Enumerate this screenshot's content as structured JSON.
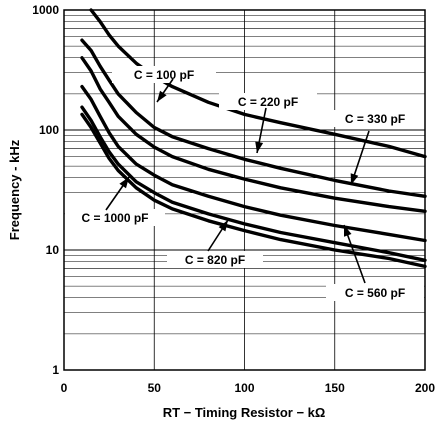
{
  "chart_data": {
    "type": "line",
    "title": "",
    "xlabel": "RT − Timing Resistor − kΩ",
    "ylabel": "Frequency - kHz",
    "xlim": [
      0,
      200
    ],
    "ylim": [
      1,
      1000
    ],
    "y_scale": "log",
    "grid": true,
    "x_ticks": [
      "0",
      "50",
      "100",
      "150",
      "200"
    ],
    "y_ticks": [
      "1",
      "10",
      "100",
      "1000"
    ],
    "series": [
      {
        "name": "C = 100 pF",
        "x": [
          15,
          20,
          25,
          30,
          40,
          50,
          60,
          80,
          100,
          120,
          150,
          180,
          200
        ],
        "y": [
          1000,
          800,
          620,
          500,
          360,
          280,
          230,
          170,
          135,
          115,
          92,
          73,
          60
        ]
      },
      {
        "name": "C = 220 pF",
        "x": [
          10,
          15,
          20,
          25,
          30,
          40,
          50,
          60,
          80,
          100,
          120,
          150,
          180,
          200
        ],
        "y": [
          560,
          460,
          340,
          260,
          200,
          140,
          105,
          88,
          70,
          57,
          48,
          38,
          31,
          28
        ]
      },
      {
        "name": "C = 330 pF",
        "x": [
          10,
          15,
          20,
          25,
          30,
          40,
          50,
          60,
          80,
          100,
          120,
          150,
          180,
          200
        ],
        "y": [
          400,
          310,
          220,
          170,
          130,
          92,
          72,
          60,
          47,
          39,
          33,
          27,
          23,
          21
        ]
      },
      {
        "name": "C = 560 pF",
        "x": [
          10,
          15,
          20,
          25,
          30,
          40,
          50,
          60,
          80,
          100,
          120,
          150,
          180,
          200
        ],
        "y": [
          230,
          180,
          130,
          95,
          73,
          52,
          42,
          35,
          28,
          23,
          19.5,
          16,
          13.5,
          12
        ]
      },
      {
        "name": "C = 820 pF",
        "x": [
          10,
          15,
          20,
          25,
          30,
          40,
          50,
          60,
          80,
          100,
          120,
          150,
          180,
          200
        ],
        "y": [
          155,
          120,
          88,
          66,
          52,
          37,
          30,
          25,
          20,
          16.5,
          14,
          11.5,
          9.5,
          8.2
        ]
      },
      {
        "name": "C = 1000 pF",
        "x": [
          10,
          15,
          20,
          25,
          30,
          40,
          50,
          60,
          80,
          100,
          120,
          150,
          180,
          200
        ],
        "y": [
          135,
          105,
          78,
          58,
          46,
          33,
          26,
          22,
          17.5,
          14.5,
          12.2,
          10,
          8.5,
          7.3
        ]
      }
    ],
    "annotations": [
      {
        "text": "C = 100 pF"
      },
      {
        "text": "C = 220 pF"
      },
      {
        "text": "C = 330 pF"
      },
      {
        "text": "C = 1000 pF"
      },
      {
        "text": "C = 820 pF"
      },
      {
        "text": "C = 560 pF"
      }
    ]
  }
}
